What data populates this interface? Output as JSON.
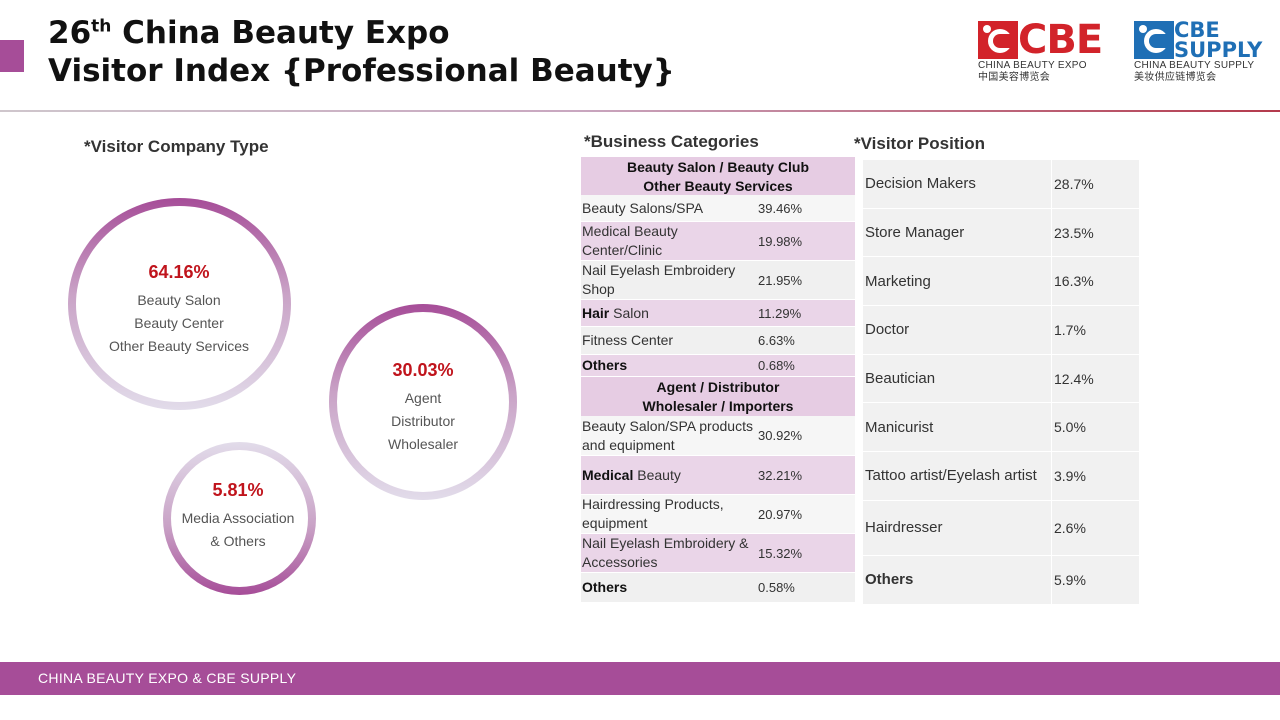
{
  "header": {
    "title_line1_number": "26",
    "title_line1_suffix": "th",
    "title_line1_rest": " China Beauty Expo",
    "title_line2": "Visitor Index {Professional Beauty}"
  },
  "logos": {
    "cbe": {
      "word": "CBE",
      "sub1": "CHINA BEAUTY EXPO",
      "sub2": "中国美容博览会"
    },
    "supply": {
      "word1": "CBE",
      "word2": "SUPPLY",
      "sub1": "CHINA BEAUTY SUPPLY",
      "sub2": "美妆供应链博览会"
    }
  },
  "colors": {
    "accent": "#a64d98",
    "pct_red": "#c0141c",
    "pink_cell": "#ead5e8"
  },
  "company_type": {
    "heading": "*Visitor Company Type",
    "items": [
      {
        "pct": "64.16%",
        "lines": [
          "Beauty Salon",
          "Beauty Center",
          "Other Beauty Services"
        ],
        "share": 64.16
      },
      {
        "pct": "30.03%",
        "lines": [
          "Agent",
          "Distributor",
          "Wholesaler"
        ],
        "share": 30.03
      },
      {
        "pct": "5.81%",
        "lines": [
          "Media Association",
          "& Others"
        ],
        "share": 5.81
      }
    ]
  },
  "business": {
    "heading": "*Business Categories",
    "groups": [
      {
        "head1": "Beauty Salon / Beauty Club",
        "head2": "Other Beauty Services",
        "rows": [
          {
            "bold": "",
            "name": "Beauty Salons/SPA",
            "value": "39.46%"
          },
          {
            "bold": "",
            "name": "Medical Beauty Center/Clinic",
            "value": "19.98%"
          },
          {
            "bold": "",
            "name": "Nail Eyelash Embroidery Shop",
            "value": "21.95%"
          },
          {
            "bold": "Hair",
            "name": " Salon",
            "value": "11.29%"
          },
          {
            "bold": "",
            "name": "Fitness Center",
            "value": "6.63%"
          },
          {
            "bold": "Others",
            "name": "",
            "value": "0.68%"
          }
        ]
      },
      {
        "head1": "Agent / Distributor",
        "head2": "Wholesaler / Importers",
        "rows": [
          {
            "bold": "",
            "name": "Beauty Salon/SPA products and equipment",
            "value": "30.92%"
          },
          {
            "bold": "Medical",
            "name": " Beauty",
            "value": "32.21%"
          },
          {
            "bold": "",
            "name": "Hairdressing Products, equipment",
            "value": "20.97%"
          },
          {
            "bold": "",
            "name": "Nail Eyelash Embroidery & Accessories",
            "value": "15.32%"
          },
          {
            "bold": "Others",
            "name": "",
            "value": "0.58%"
          }
        ]
      }
    ]
  },
  "position": {
    "heading": "*Visitor Position",
    "rows": [
      {
        "name": "Decision Makers",
        "value": "28.7%"
      },
      {
        "name": "Store Manager",
        "value": "23.5%"
      },
      {
        "name": "Marketing",
        "value": "16.3%"
      },
      {
        "name": "Doctor",
        "value": "1.7%"
      },
      {
        "name": "Beautician",
        "value": "12.4%"
      },
      {
        "name": "Manicurist",
        "value": "5.0%"
      },
      {
        "name": "Tattoo artist/Eyelash artist",
        "value": "3.9%"
      },
      {
        "name": "Hairdresser",
        "value": "2.6%"
      },
      {
        "name": "Others",
        "value": "5.9%"
      }
    ]
  },
  "footer": {
    "text": "CHINA BEAUTY EXPO & CBE SUPPLY"
  }
}
